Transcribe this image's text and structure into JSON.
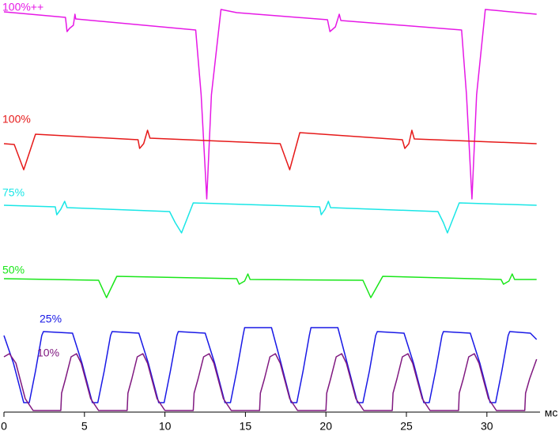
{
  "chart_data": {
    "type": "line",
    "xlabel": "мс",
    "xlim": [
      0,
      33.3
    ],
    "xticks": [
      0,
      5,
      10,
      15,
      20,
      25,
      30
    ],
    "ylim": [
      0,
      104.4
    ],
    "series": [
      {
        "name": "100%++",
        "color": "#e619e6",
        "x": [
          0,
          3.82,
          3.92,
          4.07,
          4.31,
          4.41,
          4.46,
          11.91,
          12.25,
          12.6,
          12.89,
          13.48,
          14.46,
          20.1,
          20.25,
          20.59,
          20.83,
          20.93,
          28.43,
          28.73,
          29.07,
          29.36,
          29.9,
          33.09
        ],
        "values": [
          101.4,
          100,
          96.4,
          97.2,
          98,
          100.8,
          99.6,
          96.8,
          80.4,
          54,
          80.4,
          102,
          101.2,
          99.4,
          96.4,
          97.6,
          100.8,
          99.2,
          96.8,
          80.4,
          54,
          80.4,
          102,
          100.8
        ]
      },
      {
        "name": "100%",
        "color": "#e61919",
        "x": [
          0,
          0.64,
          1.23,
          1.96,
          8.33,
          8.43,
          8.68,
          8.92,
          9.07,
          17.16,
          17.75,
          18.38,
          24.75,
          24.9,
          25.15,
          25.34,
          25.49,
          33.09
        ],
        "values": [
          68,
          67.8,
          61.4,
          70.4,
          69,
          66.8,
          68,
          71.4,
          69.4,
          68,
          61.4,
          70.8,
          69,
          66.8,
          68,
          71.4,
          69.2,
          68
        ]
      },
      {
        "name": "75%",
        "color": "#19e6e6",
        "x": [
          0,
          3.19,
          3.28,
          3.53,
          3.77,
          3.92,
          10.29,
          10.64,
          11.03,
          11.76,
          19.61,
          19.71,
          19.95,
          20.15,
          20.29,
          26.96,
          27.3,
          27.55,
          28.28,
          33.09
        ],
        "values": [
          52.4,
          52,
          50,
          51.4,
          53.4,
          51.8,
          50.8,
          48,
          45.4,
          53,
          52,
          50,
          51.4,
          53.4,
          51.8,
          50.8,
          48,
          45.4,
          53,
          52.4
        ]
      },
      {
        "name": "50%",
        "color": "#19e619",
        "x": [
          0,
          5.88,
          6.37,
          7.01,
          14.46,
          14.61,
          14.95,
          15.15,
          15.29,
          22.3,
          22.79,
          23.53,
          30.88,
          31.03,
          31.37,
          31.57,
          31.72,
          33.09
        ],
        "values": [
          33.8,
          33.4,
          29,
          34.4,
          33.8,
          32.4,
          33.2,
          35,
          33.6,
          33.4,
          29,
          34.4,
          33.6,
          32.4,
          33.2,
          35,
          33.6,
          33.6
        ]
      },
      {
        "name": "25%",
        "color": "#1919e6",
        "x": [
          0,
          0.59,
          1.23,
          1.57,
          1.96,
          2.35,
          2.45,
          4.26,
          4.85,
          5.49,
          5.83,
          6.23,
          6.62,
          6.72,
          8.38,
          8.97,
          9.61,
          9.95,
          10.34,
          10.74,
          10.83,
          12.5,
          13.09,
          13.73,
          14.07,
          14.46,
          14.85,
          14.95,
          16.62,
          17.21,
          17.84,
          18.19,
          18.58,
          18.97,
          19.07,
          20.74,
          21.32,
          21.96,
          22.3,
          22.7,
          23.09,
          23.19,
          24.85,
          25.44,
          26.08,
          26.42,
          26.81,
          27.21,
          27.3,
          28.97,
          29.56,
          30.2,
          30.54,
          30.93,
          31.32,
          31.42,
          32.7,
          33.09
        ],
        "values": [
          19.4,
          12.4,
          2.4,
          2.4,
          10.4,
          19.4,
          20.4,
          20,
          12.4,
          2.4,
          2.4,
          10.4,
          19.4,
          20.4,
          20,
          12.4,
          2.4,
          2.4,
          10.4,
          19.4,
          20.4,
          20,
          12.4,
          2.4,
          2.4,
          10.4,
          19.4,
          21.4,
          21.4,
          12.4,
          2.4,
          2.4,
          10.4,
          19.4,
          21.4,
          21.4,
          12.4,
          2.4,
          2.4,
          10.4,
          19.4,
          20.4,
          20,
          12.4,
          2.4,
          2.4,
          10.4,
          19.4,
          20.4,
          20,
          12.4,
          2.4,
          2.4,
          10.4,
          19.4,
          20.4,
          20,
          18.4
        ]
      },
      {
        "name": "10%",
        "color": "#801980",
        "x": [
          0,
          0.34,
          0.74,
          1.32,
          1.81,
          3.53,
          3.58,
          3.82,
          4.17,
          4.51,
          4.8,
          5.39,
          5.88,
          7.65,
          7.7,
          7.94,
          8.28,
          8.63,
          8.92,
          9.51,
          10,
          11.76,
          11.81,
          12.06,
          12.4,
          12.75,
          13.04,
          13.63,
          14.12,
          15.88,
          15.93,
          16.18,
          16.52,
          16.86,
          17.16,
          17.75,
          18.24,
          20,
          20.05,
          20.29,
          20.64,
          20.98,
          21.27,
          21.86,
          22.35,
          24.12,
          24.17,
          24.41,
          24.75,
          25.1,
          25.39,
          25.98,
          26.47,
          28.24,
          28.28,
          28.53,
          28.87,
          29.22,
          29.51,
          30.1,
          30.59,
          32.35,
          32.4,
          32.65,
          33.09
        ],
        "values": [
          14,
          14.8,
          12.4,
          3.4,
          0.4,
          0.4,
          4.8,
          8.4,
          14,
          14.8,
          12.4,
          3.4,
          0.4,
          0.4,
          4.8,
          8.4,
          14,
          14.8,
          12.4,
          3.4,
          0.4,
          0.4,
          4.8,
          8.4,
          14,
          14.8,
          12.4,
          3.4,
          0.4,
          0.4,
          4.8,
          8.4,
          14,
          14.8,
          12.4,
          3.4,
          0.4,
          0.4,
          4.8,
          8.4,
          14,
          14.8,
          12.4,
          3.4,
          0.4,
          0.4,
          4.8,
          8.4,
          14,
          14.8,
          12.4,
          3.4,
          0.4,
          0.4,
          4.8,
          8.4,
          14,
          14.8,
          12.4,
          3.4,
          0.4,
          0.4,
          4.8,
          8.4,
          13.4
        ]
      }
    ]
  }
}
